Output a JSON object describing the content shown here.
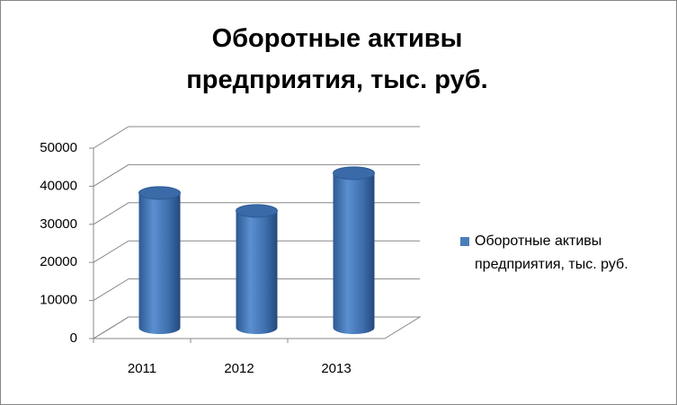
{
  "chart_data": {
    "type": "bar3d-cylinder",
    "title": "Оборотные активы предприятия, тыс. руб.",
    "categories": [
      "2011",
      "2012",
      "2013"
    ],
    "series": [
      {
        "name": "Оборотные активы предприятия, тыс. руб.",
        "color": "#4a7ebb",
        "values": [
          35400,
          30700,
          40600
        ]
      }
    ],
    "ylim": [
      0,
      50000
    ],
    "yticks": [
      0,
      10000,
      20000,
      30000,
      40000,
      50000
    ],
    "grid": true,
    "legend": "right"
  }
}
